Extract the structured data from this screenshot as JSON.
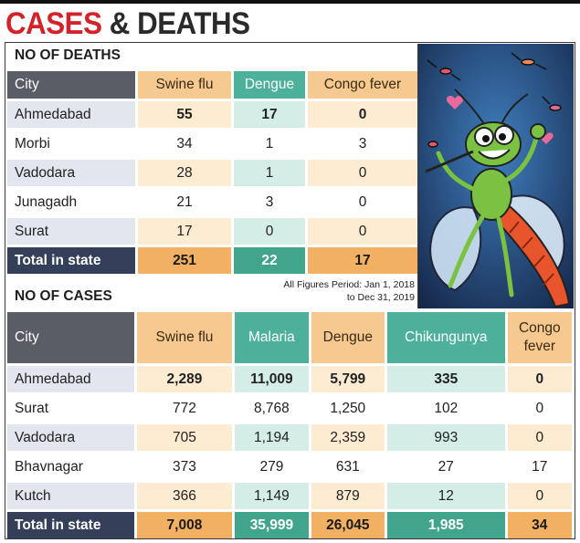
{
  "headline": {
    "part1": "CASES",
    "part2": "& DEATHS"
  },
  "deaths": {
    "section_title": "NO OF DEATHS",
    "headers": [
      "City",
      "Swine flu",
      "Dengue",
      "Congo fever"
    ],
    "rows": [
      {
        "city": "Ahmedabad",
        "swine_flu": "55",
        "dengue": "17",
        "congo_fever": "0"
      },
      {
        "city": "Morbi",
        "swine_flu": "34",
        "dengue": "1",
        "congo_fever": "3"
      },
      {
        "city": "Vadodara",
        "swine_flu": "28",
        "dengue": "1",
        "congo_fever": "0"
      },
      {
        "city": "Junagadh",
        "swine_flu": "21",
        "dengue": "3",
        "congo_fever": "0"
      },
      {
        "city": "Surat",
        "swine_flu": "17",
        "dengue": "0",
        "congo_fever": "0"
      }
    ],
    "total": {
      "label": "Total in state",
      "swine_flu": "251",
      "dengue": "22",
      "congo_fever": "17"
    }
  },
  "cases": {
    "section_title": "NO OF CASES",
    "note": "All Figures Period: Jan 1, 2018 to Dec 31, 2019",
    "headers": [
      "City",
      "Swine flu",
      "Malaria",
      "Dengue",
      "Chikungunya",
      "Congo fever"
    ],
    "rows": [
      {
        "city": "Ahmedabad",
        "swine_flu": "2,289",
        "malaria": "11,009",
        "dengue": "5,799",
        "chikungunya": "335",
        "congo_fever": "0"
      },
      {
        "city": "Surat",
        "swine_flu": "772",
        "malaria": "8,768",
        "dengue": "1,250",
        "chikungunya": "102",
        "congo_fever": "0"
      },
      {
        "city": "Vadodara",
        "swine_flu": "705",
        "malaria": "1,194",
        "dengue": "2,359",
        "chikungunya": "993",
        "congo_fever": "0"
      },
      {
        "city": "Bhavnagar",
        "swine_flu": "373",
        "malaria": "279",
        "dengue": "631",
        "chikungunya": "27",
        "congo_fever": "17"
      },
      {
        "city": "Kutch",
        "swine_flu": "366",
        "malaria": "1,149",
        "dengue": "879",
        "chikungunya": "12",
        "congo_fever": "0"
      }
    ],
    "total": {
      "label": "Total in state",
      "swine_flu": "7,008",
      "malaria": "35,999",
      "dengue": "26,045",
      "chikungunya": "1,985",
      "congo_fever": "34"
    }
  },
  "colors": {
    "headline_red": "#d2232a",
    "header_gray": "#5a5c66",
    "orange": "#f5c98f",
    "teal": "#4cb09b",
    "total_navy": "#34405a"
  },
  "illustration": {
    "subject": "cartoon-mosquito-illustration"
  }
}
